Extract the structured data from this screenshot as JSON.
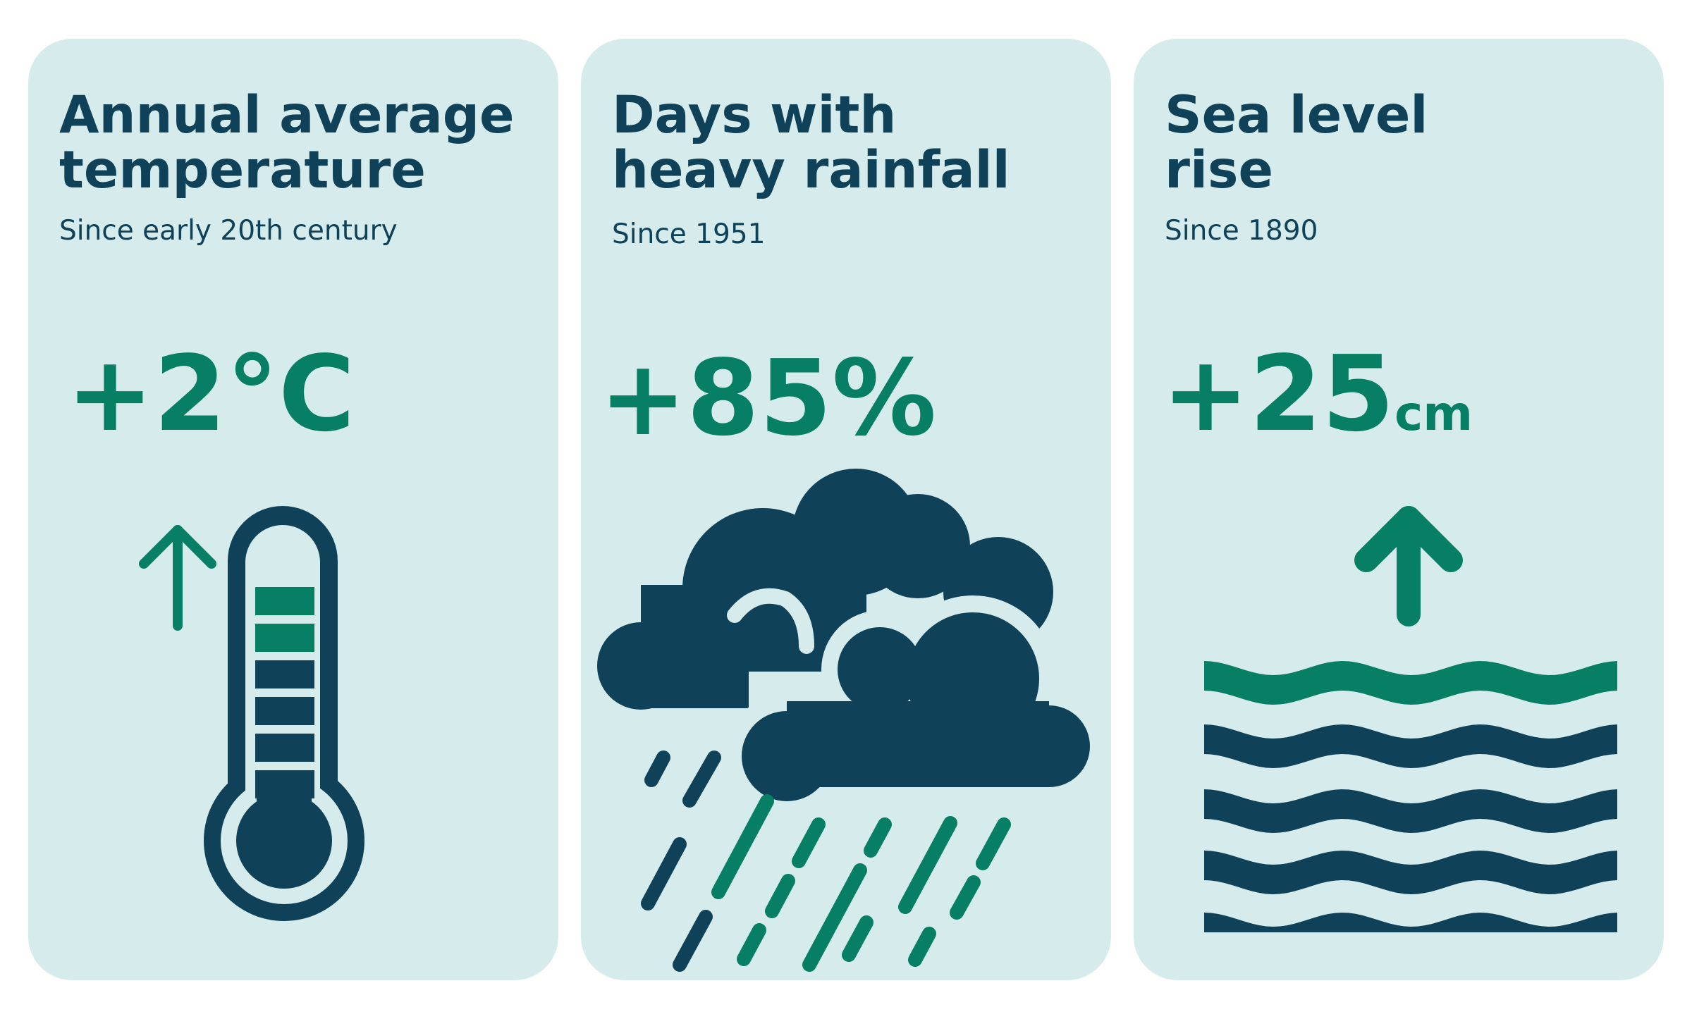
{
  "colors": {
    "card_background": "#d6ebeb",
    "dark_navy": "#0f4259",
    "teal_green": "#067f65"
  },
  "cards": [
    {
      "title_lines": [
        "Annual average",
        "temperature"
      ],
      "subtitle": "Since early 20th century",
      "value": "+2°C",
      "unit": "",
      "icon": "thermometer-up-icon"
    },
    {
      "title_lines": [
        "Days with",
        "heavy rainfall"
      ],
      "subtitle": "Since 1951",
      "value": "+85%",
      "unit": "",
      "icon": "cloud-rain-icon"
    },
    {
      "title_lines": [
        "Sea level",
        "rise"
      ],
      "subtitle": "Since 1890",
      "value": "+25",
      "unit": "cm",
      "icon": "sea-waves-arrow-up-icon"
    }
  ]
}
